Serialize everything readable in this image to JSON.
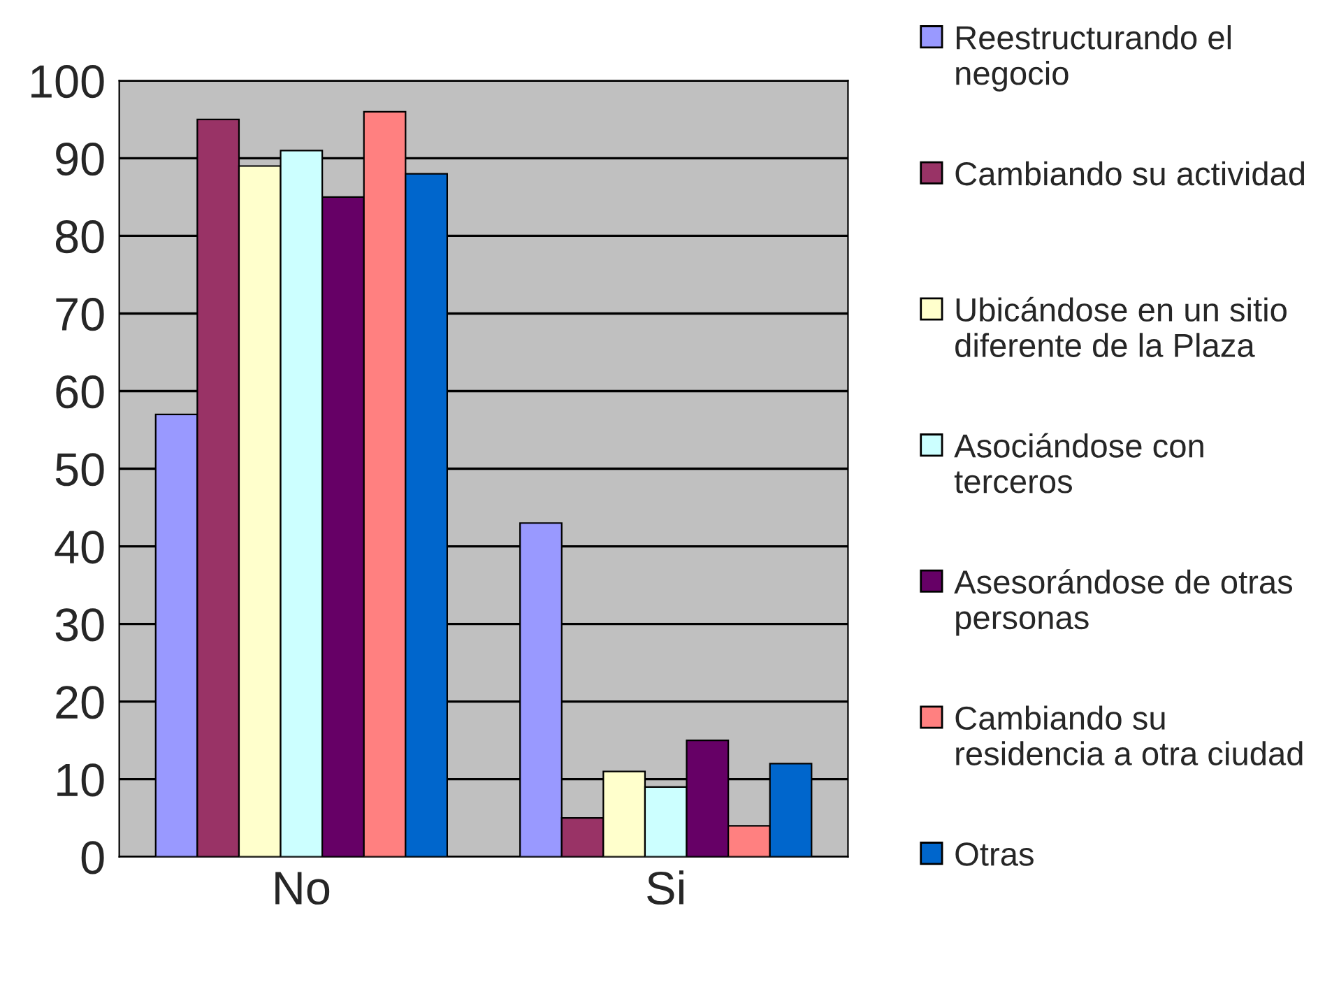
{
  "chart_data": {
    "type": "bar",
    "categories": [
      "No",
      "Si"
    ],
    "series": [
      {
        "name": "Reestructurando el negocio",
        "color": "#9999ff",
        "values": [
          57,
          43
        ]
      },
      {
        "name": "Cambiando su actividad",
        "color": "#993366",
        "values": [
          95,
          5
        ]
      },
      {
        "name": "Ubicándose en un sitio diferente de la Plaza",
        "color": "#ffffcc",
        "values": [
          89,
          11
        ]
      },
      {
        "name": "Asociándose con terceros",
        "color": "#ccffff",
        "values": [
          91,
          9
        ]
      },
      {
        "name": "Asesorándose de otras personas",
        "color": "#660066",
        "values": [
          85,
          15
        ]
      },
      {
        "name": "Cambiando su residencia a otra ciudad",
        "color": "#ff8080",
        "values": [
          96,
          4
        ]
      },
      {
        "name": "Otras",
        "color": "#0066cc",
        "values": [
          88,
          12
        ]
      }
    ],
    "ylim": [
      0,
      100
    ],
    "yticks": [
      0,
      10,
      20,
      30,
      40,
      50,
      60,
      70,
      80,
      90,
      100
    ],
    "grid": "y",
    "legend": "right"
  }
}
